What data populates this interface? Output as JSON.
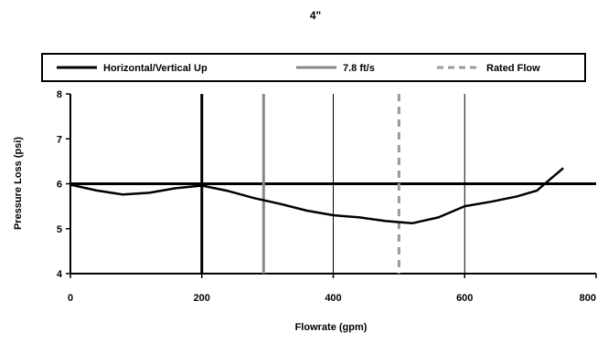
{
  "chart_data": {
    "type": "line",
    "title": "4\"",
    "xlabel": "Flowrate (gpm)",
    "ylabel": "Pressure Loss (psi)",
    "xlim": [
      0,
      800
    ],
    "ylim": [
      4,
      8
    ],
    "x_ticks": [
      "0",
      "200",
      "400",
      "600",
      "800"
    ],
    "y_ticks": [
      "4",
      "5",
      "6",
      "7",
      "8"
    ],
    "grid": "vertical",
    "legend_position": "top",
    "series": [
      {
        "name": "Horizontal/Vertical Up",
        "style": "solid",
        "color": "#000000",
        "kind": "segments",
        "segments": [
          [
            [
              0,
              6.0
            ],
            [
              800,
              6.0
            ]
          ],
          [
            [
              200,
              4.0
            ],
            [
              200,
              8.0
            ]
          ]
        ]
      },
      {
        "name": "7.8 ft/s",
        "style": "solid",
        "color": "#888888",
        "kind": "vline",
        "x": 294
      },
      {
        "name": "Rated Flow",
        "style": "dashed",
        "color": "#999999",
        "kind": "vline",
        "x": 500
      },
      {
        "name": "",
        "style": "solid",
        "color": "#000000",
        "kind": "line",
        "points": [
          [
            0,
            5.98
          ],
          [
            40,
            5.85
          ],
          [
            80,
            5.76
          ],
          [
            120,
            5.8
          ],
          [
            160,
            5.9
          ],
          [
            200,
            5.96
          ],
          [
            240,
            5.84
          ],
          [
            280,
            5.68
          ],
          [
            320,
            5.55
          ],
          [
            360,
            5.4
          ],
          [
            400,
            5.3
          ],
          [
            440,
            5.25
          ],
          [
            480,
            5.17
          ],
          [
            520,
            5.12
          ],
          [
            560,
            5.25
          ],
          [
            600,
            5.5
          ],
          [
            640,
            5.6
          ],
          [
            680,
            5.72
          ],
          [
            710,
            5.85
          ],
          [
            730,
            6.1
          ],
          [
            750,
            6.35
          ]
        ]
      }
    ]
  }
}
